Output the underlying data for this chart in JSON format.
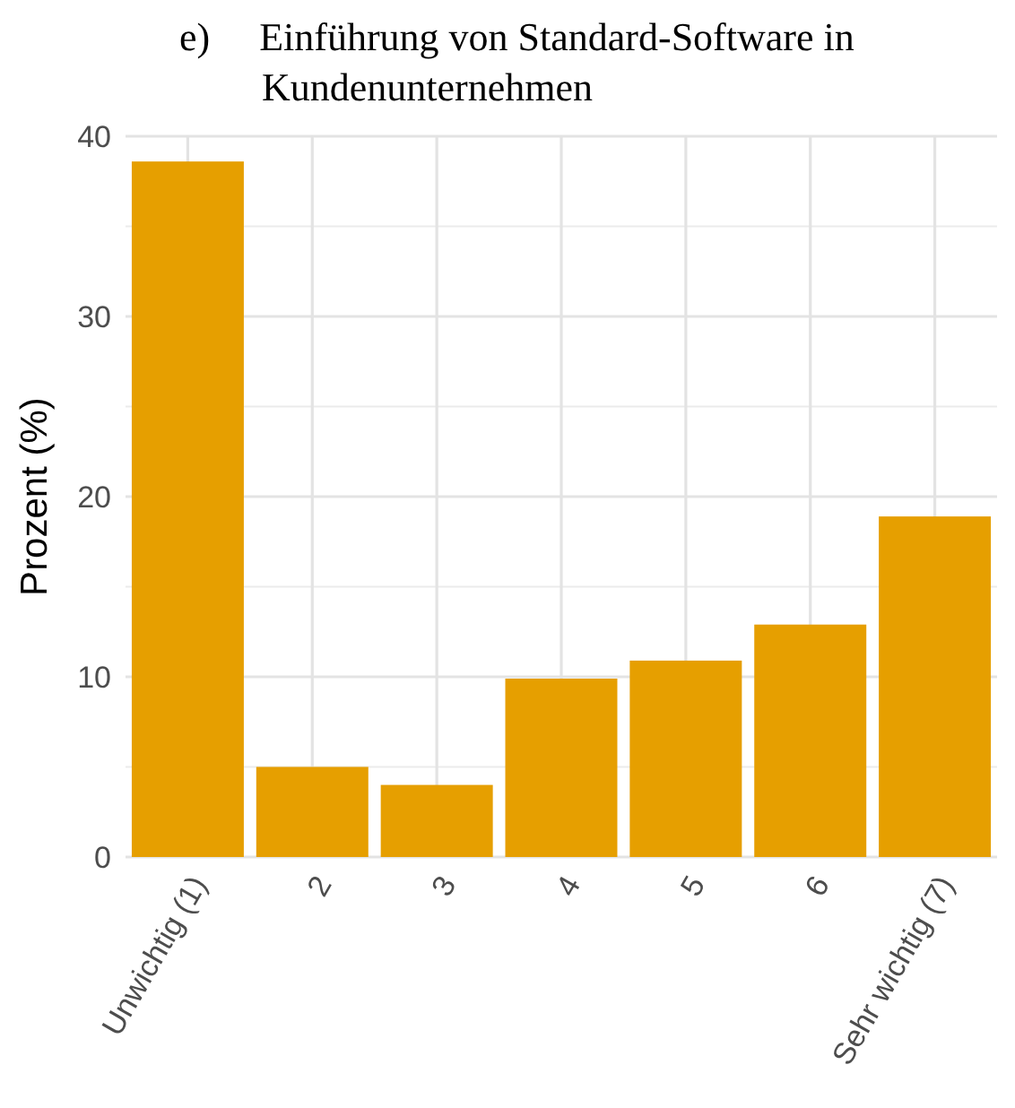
{
  "chart_data": {
    "type": "bar",
    "title": "e)     Einführung von Standard-Software in Kundenunternehmen",
    "ylabel": "Prozent (%)",
    "categories": [
      "Unwichtig (1)",
      "2",
      "3",
      "4",
      "5",
      "6",
      "Sehr wichtig (7)"
    ],
    "values": [
      38.6,
      5.0,
      4.0,
      9.9,
      10.9,
      12.9,
      18.9
    ],
    "color": "#e69f00",
    "ylim": [
      0,
      40
    ],
    "yticks": [
      0,
      10,
      20,
      30,
      40
    ],
    "grid": true
  }
}
